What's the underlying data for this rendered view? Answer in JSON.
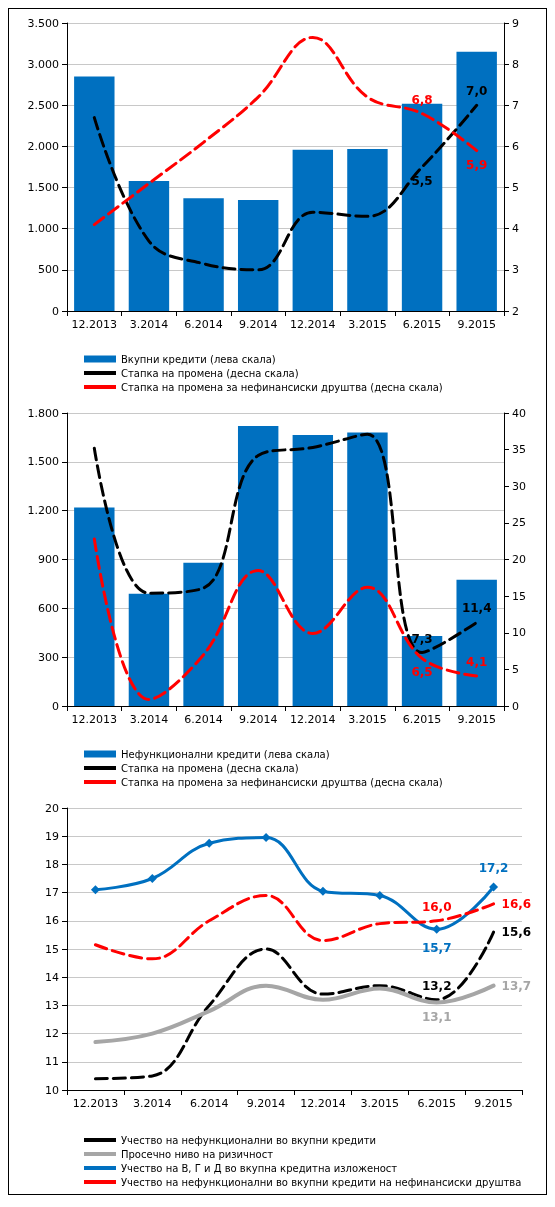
{
  "chart_data": [
    {
      "type": "bar",
      "categories": [
        "12.2013",
        "3.2014",
        "6.2014",
        "9.2014",
        "12.2014",
        "3.2015",
        "6.2015",
        "9.2015"
      ],
      "series": [
        {
          "name": "Вкупни кредити (лева скала)",
          "color": "#0070c0",
          "values": [
            2850,
            1580,
            1370,
            1350,
            1960,
            1970,
            2520,
            3150
          ]
        },
        {
          "name": "Стапка на промена (десна скала)",
          "type": "line",
          "axis": "y2",
          "color": "#000000",
          "line_style": "dashed",
          "values": [
            6.7,
            3.7,
            3.15,
            3.0,
            4.4,
            4.3,
            5.5,
            7.0
          ],
          "value_labels": [
            null,
            null,
            null,
            null,
            null,
            null,
            "5,5",
            "7,0"
          ]
        },
        {
          "name": "Стапка на промена за нефинансиски друштва (десна скала)",
          "type": "line",
          "axis": "y2",
          "color": "#ff0000",
          "line_style": "dashed",
          "values": [
            4.1,
            5.1,
            6.1,
            7.2,
            8.65,
            7.2,
            6.8,
            5.9
          ],
          "value_labels": [
            null,
            null,
            null,
            null,
            null,
            null,
            "6,8",
            "5,9"
          ]
        }
      ],
      "ylim": [
        0,
        3500
      ],
      "yticks": [
        0,
        {
          "value": 500,
          "label": "500"
        },
        {
          "value": 1000,
          "label": "1.000"
        },
        {
          "value": 1500,
          "label": "1.500"
        },
        {
          "value": 2000,
          "label": "2.000"
        },
        {
          "value": 2500,
          "label": "2.500"
        },
        {
          "value": 3000,
          "label": "3.000"
        },
        {
          "value": 3500,
          "label": "3.500"
        }
      ],
      "y2lim": [
        2,
        9
      ],
      "y2ticks": [
        2,
        3,
        4,
        5,
        6,
        7,
        8,
        9
      ],
      "grid": "y",
      "legend": "bottom",
      "marker": "none"
    },
    {
      "type": "bar",
      "categories": [
        "12.2013",
        "3.2014",
        "6.2014",
        "9.2014",
        "12.2014",
        "3.2015",
        "6.2015",
        "9.2015"
      ],
      "series": [
        {
          "name": "Нефункционални кредити (лева скала)",
          "color": "#0070c0",
          "values": [
            1220,
            690,
            880,
            1720,
            1665,
            1680,
            430,
            775
          ]
        },
        {
          "name": "Стапка на промена (десна скала)",
          "type": "line",
          "axis": "y2",
          "color": "#000000",
          "line_style": "dashed",
          "values": [
            35.2,
            15.4,
            16.1,
            34.2,
            35.3,
            37.1,
            7.3,
            11.4
          ],
          "value_labels": [
            null,
            null,
            null,
            null,
            null,
            null,
            "7,3",
            "11,4"
          ]
        },
        {
          "name": "Стапка на промена за нефинансиски друштва (десна скала)",
          "type": "line",
          "axis": "y2",
          "color": "#ff0000",
          "line_style": "dashed",
          "values": [
            22.8,
            0.9,
            7.0,
            18.5,
            9.9,
            16.2,
            6.5,
            4.1
          ],
          "value_labels": [
            null,
            null,
            null,
            null,
            null,
            null,
            "6,5",
            "4,1"
          ]
        }
      ],
      "ylim": [
        0,
        1800
      ],
      "yticks": [
        0,
        300,
        600,
        900,
        {
          "value": 1200,
          "label": "1.200"
        },
        {
          "value": 1500,
          "label": "1.500"
        },
        {
          "value": 1800,
          "label": "1.800"
        }
      ],
      "y2lim": [
        0,
        40
      ],
      "y2ticks": [
        0,
        5,
        10,
        15,
        20,
        25,
        30,
        35,
        40
      ],
      "grid": "y",
      "legend": "bottom",
      "marker": "none"
    },
    {
      "type": "line",
      "categories": [
        "12.2013",
        "3.2014",
        "6.2014",
        "9.2014",
        "12.2014",
        "3.2015",
        "6.2015",
        "9.2015"
      ],
      "series": [
        {
          "name": "Учество на нефункционални во вкупни кредити",
          "color": "#000000",
          "line_style": "dashed",
          "marker": "none",
          "values": [
            10.4,
            10.5,
            13.0,
            15.0,
            13.4,
            13.7,
            13.2,
            15.6
          ],
          "value_labels": [
            null,
            null,
            null,
            null,
            null,
            null,
            "13,2",
            "15,6"
          ]
        },
        {
          "name": "Просечно ниво на ризичност",
          "color": "#a6a6a6",
          "line_style": "solid",
          "marker": "none",
          "values": [
            11.7,
            12.0,
            12.8,
            13.7,
            13.2,
            13.6,
            13.1,
            13.7
          ],
          "value_labels": [
            null,
            null,
            null,
            null,
            null,
            null,
            "13,1",
            "13,7"
          ]
        },
        {
          "name": "Учество на В, Г и Д во вкупна кредитна изложеност",
          "color": "#0070c0",
          "line_style": "solid",
          "marker": "diamond",
          "values": [
            17.1,
            17.5,
            18.75,
            18.95,
            17.05,
            16.9,
            15.7,
            17.2
          ],
          "value_labels": [
            null,
            null,
            null,
            null,
            null,
            null,
            "15,7",
            "17,2"
          ]
        },
        {
          "name": "Учество на нефункционални во вкупни кредити на нефинансиски друштва",
          "color": "#ff0000",
          "line_style": "dashed",
          "marker": "none",
          "values": [
            15.15,
            14.65,
            16.0,
            16.9,
            15.3,
            15.9,
            16.0,
            16.6
          ],
          "value_labels": [
            null,
            null,
            null,
            null,
            null,
            null,
            "16,0",
            "16,6"
          ]
        }
      ],
      "ylim": [
        10,
        20
      ],
      "yticks": [
        10,
        11,
        12,
        13,
        14,
        15,
        16,
        17,
        18,
        19,
        20
      ],
      "grid": "y",
      "legend": "bottom"
    }
  ]
}
